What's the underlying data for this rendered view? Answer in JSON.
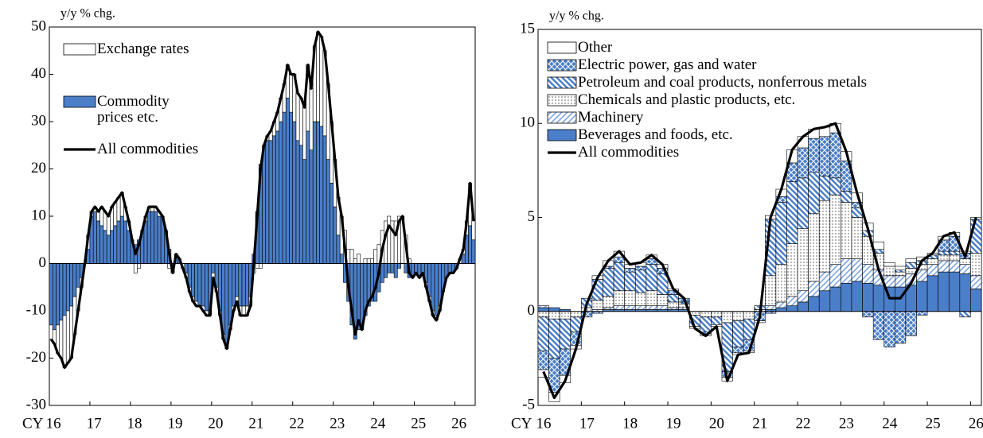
{
  "chart_data": [
    {
      "type": "bar",
      "stacked": true,
      "y_label": "y/y % chg.",
      "x_label": "CY",
      "categories": [
        "16",
        null,
        null,
        null,
        null,
        null,
        null,
        null,
        null,
        null,
        null,
        null,
        "17",
        null,
        null,
        null,
        null,
        null,
        null,
        null,
        null,
        null,
        null,
        null,
        "18",
        null,
        null,
        null,
        null,
        null,
        null,
        null,
        null,
        null,
        null,
        null,
        "19",
        null,
        null,
        null,
        null,
        null,
        null,
        null,
        null,
        null,
        null,
        null,
        "20",
        null,
        null,
        null,
        null,
        null,
        null,
        null,
        null,
        null,
        null,
        null,
        "21",
        null,
        null,
        null,
        null,
        null,
        null,
        null,
        null,
        null,
        null,
        null,
        "22",
        null,
        null,
        null,
        null,
        null,
        null,
        null,
        null,
        null,
        null,
        null,
        "23",
        null,
        null,
        null,
        null,
        null,
        null,
        null,
        null,
        null,
        null,
        null,
        "24",
        null,
        null,
        null,
        null,
        null,
        null,
        null,
        null,
        null,
        null,
        null,
        "25",
        null,
        null,
        null,
        null,
        null,
        null,
        null,
        null,
        null,
        null,
        null,
        "26",
        null,
        null,
        null,
        null,
        null
      ],
      "series": [
        {
          "name": "Exchange rates",
          "color": "#ffffff",
          "pattern": "none",
          "values": [
            -3,
            -3,
            -6,
            -8,
            -11,
            -11,
            -11,
            -8,
            -5,
            -2,
            0,
            3,
            1,
            1,
            2,
            4,
            4,
            4,
            5,
            5,
            5,
            5,
            3,
            2,
            0,
            -2,
            -1,
            0,
            1,
            1,
            1,
            1,
            1,
            0,
            0,
            -1,
            -1,
            0,
            0,
            -1,
            -1,
            -1,
            -1,
            -1,
            0,
            -1,
            -1,
            -1,
            -1,
            -1,
            -1,
            -1,
            -1,
            -1,
            -1,
            -1,
            -2,
            -2,
            -2,
            -2,
            -2,
            -1,
            -1,
            0,
            1,
            2,
            3,
            4,
            5,
            6,
            7,
            8,
            10,
            10,
            10,
            11,
            14,
            13,
            16,
            19,
            19,
            18,
            16,
            13,
            10,
            8,
            8,
            7,
            3,
            3,
            1,
            2,
            0,
            1,
            1,
            1,
            3,
            4,
            7,
            9,
            10,
            9,
            9,
            10,
            10,
            6,
            1,
            0,
            0,
            0,
            0,
            -1,
            -1,
            -1,
            -1,
            -1,
            0,
            0,
            0,
            0,
            0,
            1,
            1,
            3,
            9,
            4
          ]
        },
        {
          "name": "Commodity prices etc.",
          "color": "#4a7ec8",
          "pattern": "solid",
          "values": [
            -13,
            -14,
            -13,
            -12,
            -11,
            -10,
            -9,
            -7,
            -5,
            -3,
            0,
            3,
            10,
            11,
            9,
            8,
            7,
            6,
            7,
            8,
            9,
            10,
            9,
            7,
            5,
            4,
            5,
            7,
            9,
            11,
            11,
            11,
            10,
            10,
            7,
            3,
            -1,
            2,
            1,
            0,
            -2,
            -5,
            -7,
            -8,
            -9,
            -9,
            -10,
            -10,
            -2,
            -5,
            -10,
            -15,
            -17,
            -13,
            -9,
            -7,
            -9,
            -9,
            -9,
            -7,
            2,
            11,
            21,
            25,
            26,
            26,
            27,
            28,
            30,
            32,
            35,
            32,
            30,
            26,
            25,
            22,
            28,
            24,
            30,
            30,
            29,
            27,
            22,
            17,
            12,
            6,
            2,
            -4,
            -8,
            -13,
            -16,
            -14,
            -14,
            -11,
            -9,
            -8,
            -8,
            -6,
            -4,
            -3,
            -2,
            -2,
            -3,
            -1,
            0,
            -2,
            -3,
            -3,
            -2,
            -3,
            -2,
            -4,
            -7,
            -10,
            -11,
            -9,
            -6,
            -3,
            -2,
            -2,
            -1,
            0,
            2,
            6,
            8,
            5
          ]
        },
        {
          "name": "All commodities",
          "color": "#000000",
          "type": "line",
          "values": [
            -16,
            -17,
            -19,
            -20,
            -22,
            -21,
            -20,
            -15,
            -10,
            -5,
            0,
            6,
            11,
            12,
            11,
            12,
            11,
            10,
            12,
            13,
            14,
            15,
            12,
            9,
            5,
            2,
            4,
            7,
            10,
            12,
            12,
            12,
            11,
            10,
            7,
            2,
            -2,
            2,
            1,
            -1,
            -3,
            -6,
            -8,
            -9,
            -9,
            -10,
            -11,
            -11,
            -3,
            -6,
            -11,
            -16,
            -18,
            -14,
            -10,
            -8,
            -11,
            -11,
            -11,
            -9,
            0,
            10,
            20,
            25,
            27,
            28,
            30,
            32,
            35,
            38,
            42,
            40,
            40,
            36,
            35,
            33,
            42,
            37,
            46,
            49,
            48,
            45,
            38,
            30,
            22,
            14,
            10,
            3,
            -5,
            -10,
            -15,
            -12,
            -14,
            -10,
            -8,
            -7,
            -5,
            -2,
            3,
            6,
            8,
            7,
            6,
            9,
            10,
            4,
            -2,
            -3,
            -2,
            -3,
            -2,
            -5,
            -8,
            -11,
            -12,
            -10,
            -6,
            -3,
            -2,
            -2,
            -1,
            1,
            3,
            9,
            17,
            9
          ]
        }
      ],
      "ylim": [
        -30,
        50
      ],
      "yticks": [
        -30,
        -20,
        -10,
        0,
        10,
        20,
        30,
        40,
        50
      ]
    },
    {
      "type": "bar",
      "stacked": true,
      "y_label": "y/y % chg.",
      "x_label": "CY",
      "categories": [
        "16",
        null,
        null,
        null,
        "17",
        null,
        null,
        null,
        "18",
        null,
        null,
        null,
        "19",
        null,
        null,
        null,
        "20",
        null,
        null,
        null,
        "21",
        null,
        null,
        null,
        "22",
        null,
        null,
        null,
        "23",
        null,
        null,
        null,
        "24",
        null,
        null,
        null,
        "25",
        null,
        null,
        null,
        "26"
      ],
      "series": [
        {
          "name": "Other",
          "color": "#ffffff",
          "pattern": "none",
          "values": [
            -0.4,
            -0.5,
            -0.4,
            -0.2,
            0,
            0.2,
            0.3,
            0.3,
            0.2,
            0.2,
            0.2,
            0.2,
            0.1,
            0,
            -0.1,
            -0.1,
            -0.1,
            -0.2,
            -0.1,
            -0.1,
            -0.1,
            0.2,
            0.4,
            0.7,
            0.6,
            0.5,
            0.5,
            0.5,
            0.5,
            0.5,
            0.4,
            0.4,
            0.2,
            0.2,
            0.2,
            0.2,
            0.1,
            0.2,
            0.2,
            0.1,
            0.1
          ]
        },
        {
          "name": "Electric power, gas and water",
          "color": "#4a7ec8",
          "pattern": "cross",
          "values": [
            -1,
            -1.8,
            -1.4,
            -0.7,
            -0.3,
            -0.1,
            0.1,
            0.3,
            0.2,
            0.2,
            0.3,
            0.3,
            0.2,
            0.2,
            0,
            -0.1,
            0,
            -0.3,
            -0.3,
            -0.6,
            -0.5,
            -0.1,
            0.3,
            1,
            1.6,
            1.8,
            2.1,
            2.4,
            1.6,
            0.3,
            -0.3,
            -1.5,
            -1.9,
            -1.7,
            -1.3,
            -0.2,
            0,
            0.6,
            0.8,
            0.3,
            0
          ]
        },
        {
          "name": "Petroleum and coal products, nonferrous metals",
          "color": "#4a7ec8",
          "pattern": "stripes",
          "values": [
            -1.8,
            -2.1,
            -1.6,
            -0.8,
            0.5,
            1.1,
            1.5,
            1.5,
            1,
            1.2,
            1.4,
            1.1,
            0.4,
            0.1,
            -0.6,
            -0.8,
            -0.4,
            -2.6,
            -1.4,
            -1.1,
            0.2,
            3,
            3.3,
            3.3,
            2.7,
            2.2,
            1.3,
            0.9,
            0.6,
            0.5,
            0.3,
            0.2,
            0,
            0.1,
            0.3,
            0.2,
            0.2,
            0.2,
            0.2,
            -0.3,
            1.8
          ]
        },
        {
          "name": "Chemicals and plastic products, etc.",
          "color": "#000000",
          "pattern": "dots",
          "values": [
            -0.3,
            -0.4,
            -0.4,
            -0.3,
            0.2,
            0.5,
            0.6,
            0.8,
            0.8,
            0.7,
            0.8,
            0.6,
            0.3,
            0.2,
            -0.2,
            -0.3,
            -0.3,
            -0.6,
            -0.5,
            -0.4,
            0.1,
            1.6,
            2,
            2.8,
            3.3,
            3.6,
            3.8,
            3.7,
            3,
            2.2,
            1.5,
            0.9,
            0.5,
            0.2,
            0.3,
            0.3,
            0.3,
            0.3,
            0.3,
            0.3,
            1.2
          ]
        },
        {
          "name": "Machinery",
          "color": "#7ea6e0",
          "pattern": "hatch",
          "values": [
            0.1,
            0,
            0,
            0,
            0,
            0.1,
            0.1,
            0.2,
            0.2,
            0.2,
            0.2,
            0.2,
            0.1,
            0.1,
            0,
            0,
            0,
            0,
            0,
            0,
            0,
            0.2,
            0.3,
            0.5,
            0.6,
            0.8,
            1,
            1.2,
            1.3,
            1.2,
            1,
            0.8,
            0.6,
            0.6,
            0.6,
            0.6,
            0.6,
            0.6,
            0.6,
            0.5,
            0.7
          ]
        },
        {
          "name": "Beverages and foods, etc.",
          "color": "#4a7ec8",
          "pattern": "solid",
          "values": [
            0.2,
            0.2,
            0.1,
            0,
            0,
            0,
            0.1,
            0.1,
            0.1,
            0.1,
            0.1,
            0.1,
            0.1,
            0.1,
            0,
            0,
            0,
            0,
            0,
            0,
            0,
            0.1,
            0.2,
            0.3,
            0.5,
            0.8,
            1.1,
            1.3,
            1.5,
            1.6,
            1.5,
            1.4,
            1.3,
            1.3,
            1.4,
            1.6,
            1.9,
            2.1,
            2.1,
            2,
            1.2
          ]
        },
        {
          "name": "All commodities",
          "color": "#000000",
          "type": "line",
          "values": [
            -3.2,
            -4.6,
            -3.7,
            -2,
            0.4,
            1.8,
            2.7,
            3.2,
            2.5,
            2.6,
            3,
            2.5,
            1.2,
            0.7,
            -0.9,
            -1.3,
            -0.8,
            -3.7,
            -2.3,
            -2.2,
            -0.3,
            5,
            6.5,
            8.6,
            9.3,
            9.7,
            9.8,
            10,
            8.5,
            6.3,
            4.4,
            2.2,
            0.7,
            0.7,
            1.5,
            2.7,
            3.1,
            4,
            4.2,
            2.9,
            5
          ]
        }
      ],
      "ylim": [
        -5,
        15
      ],
      "yticks": [
        -5,
        0,
        5,
        10,
        15
      ]
    }
  ]
}
